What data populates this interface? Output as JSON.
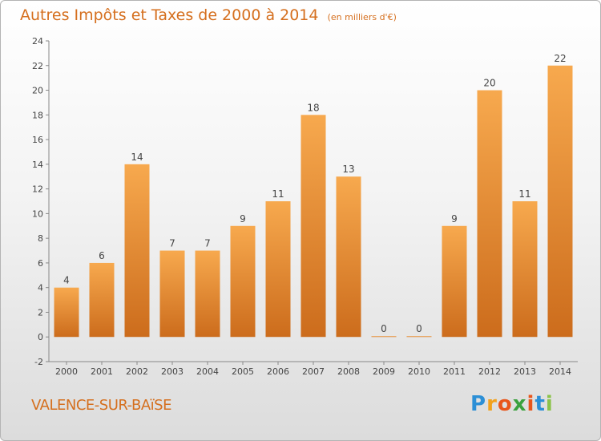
{
  "title": "Autres Impôts et Taxes de 2000 à 2014",
  "subtitle": "(en milliers d'€)",
  "commune": "VALENCE-SUR-BAïSE",
  "logo": {
    "letters": [
      "P",
      "r",
      "o",
      "x",
      "i",
      "t",
      "i"
    ],
    "colors": [
      "#2c8fd6",
      "#f2a21d",
      "#e8561c",
      "#3aa13e",
      "#e8561c",
      "#2c8fd6",
      "#8bc34a"
    ]
  },
  "colors": {
    "accent": "#d56f1e",
    "bar_light": "#f7a94e",
    "bar_dark": "#cc6c1c"
  },
  "chart_data": {
    "type": "bar",
    "categories": [
      "2000",
      "2001",
      "2002",
      "2003",
      "2004",
      "2005",
      "2006",
      "2007",
      "2008",
      "2009",
      "2010",
      "2011",
      "2012",
      "2013",
      "2014"
    ],
    "values": [
      4,
      6,
      14,
      7,
      7,
      9,
      11,
      18,
      13,
      0,
      0,
      9,
      20,
      11,
      22
    ],
    "ylim": [
      -2,
      24
    ],
    "yticks": [
      "-2",
      "0",
      "2",
      "4",
      "6",
      "8",
      "10",
      "12",
      "14",
      "16",
      "18",
      "20",
      "22",
      "24"
    ],
    "grid": false
  }
}
